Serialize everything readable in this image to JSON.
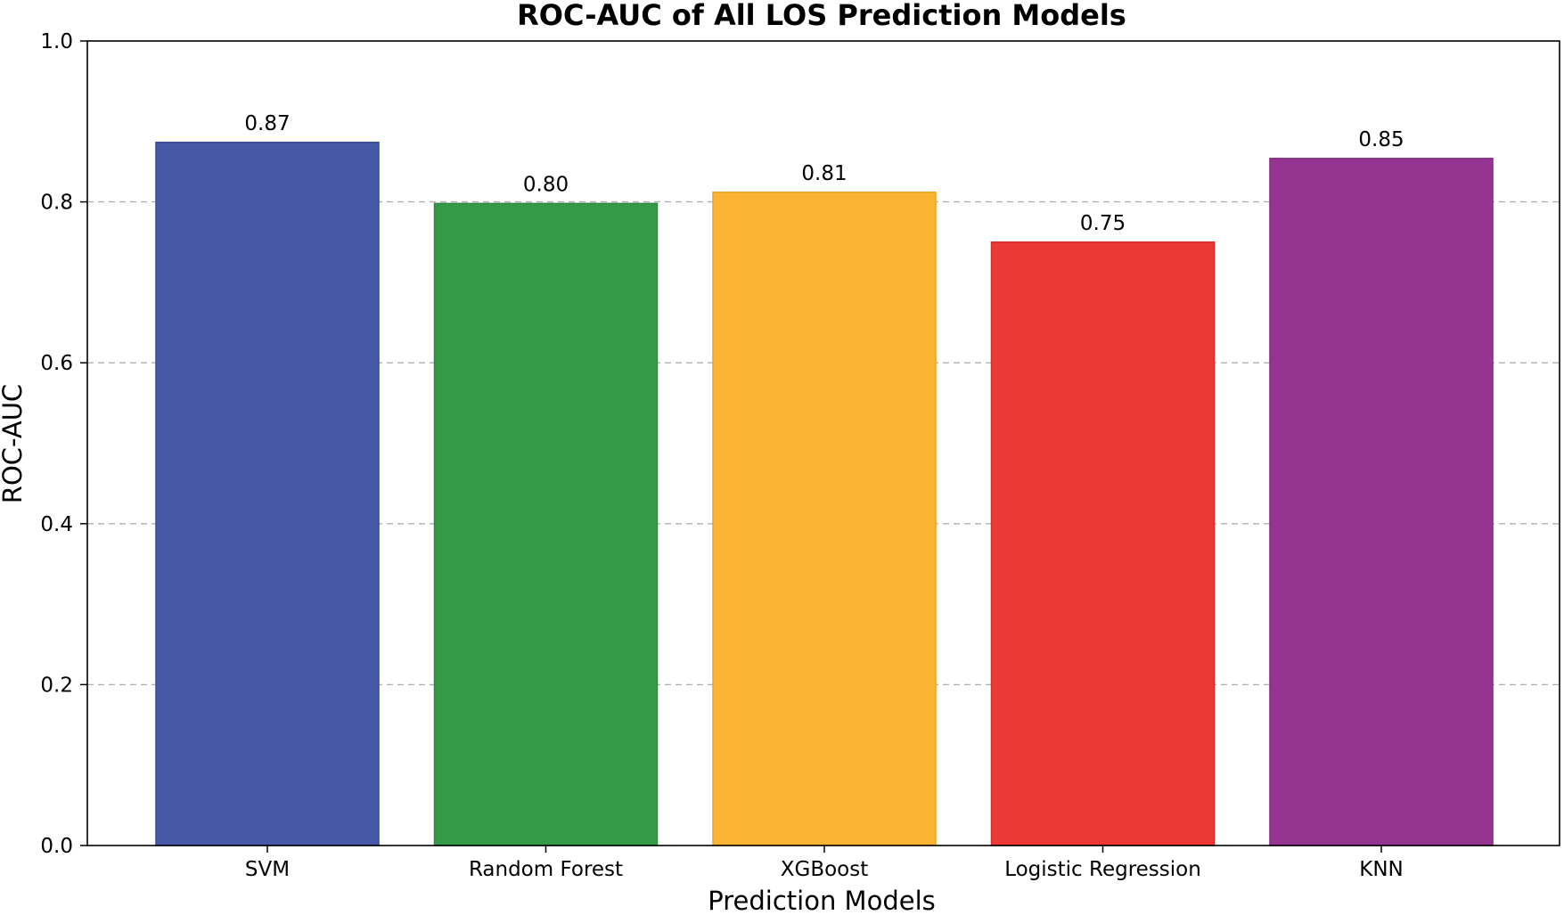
{
  "chart_data": {
    "type": "bar",
    "title": "ROC-AUC of All LOS Prediction Models",
    "xlabel": "Prediction Models",
    "ylabel": "ROC-AUC",
    "categories": [
      "SVM",
      "Random Forest",
      "XGBoost",
      "Logistic Regression",
      "KNN"
    ],
    "values": [
      0.874,
      0.798,
      0.812,
      0.75,
      0.854
    ],
    "data_labels": [
      "0.87",
      "0.80",
      "0.81",
      "0.75",
      "0.85"
    ],
    "colors": [
      "#4759a6",
      "#349a46",
      "#f9b531",
      "#ec3936",
      "#963591"
    ],
    "edge_colors": [
      "#3a4b93",
      "#2b8a3b",
      "#e9a524",
      "#d52e2b",
      "#84297f"
    ],
    "ylim": [
      0.0,
      1.0
    ],
    "yticks": [
      0.0,
      0.2,
      0.4,
      0.6,
      0.8,
      1.0
    ],
    "ytick_labels": [
      "0.0",
      "0.2",
      "0.4",
      "0.6",
      "0.8",
      "1.0"
    ],
    "grid": "y-dashed",
    "legend": "none"
  }
}
